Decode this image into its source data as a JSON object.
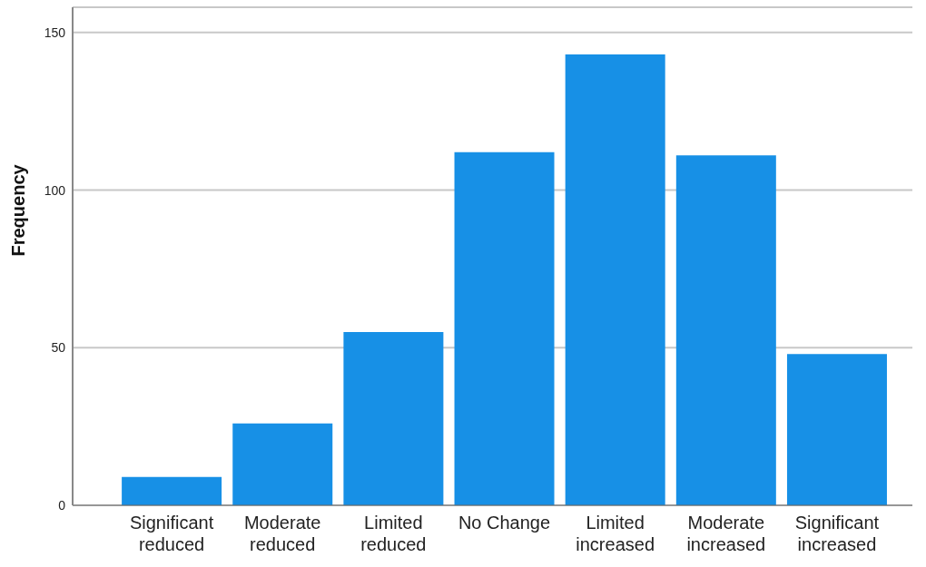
{
  "chart_data": {
    "type": "bar",
    "ylabel": "Frequency",
    "categories": [
      "Significant reduced",
      "Moderate reduced",
      "Limited reduced",
      "No Change",
      "Limited increased",
      "Moderate increased",
      "Significant increased"
    ],
    "values": [
      9,
      26,
      55,
      112,
      143,
      111,
      48
    ],
    "color": "#1790e6",
    "ylim": [
      0,
      158
    ],
    "yticks": [
      0,
      50,
      100,
      150
    ],
    "grid": "y"
  }
}
